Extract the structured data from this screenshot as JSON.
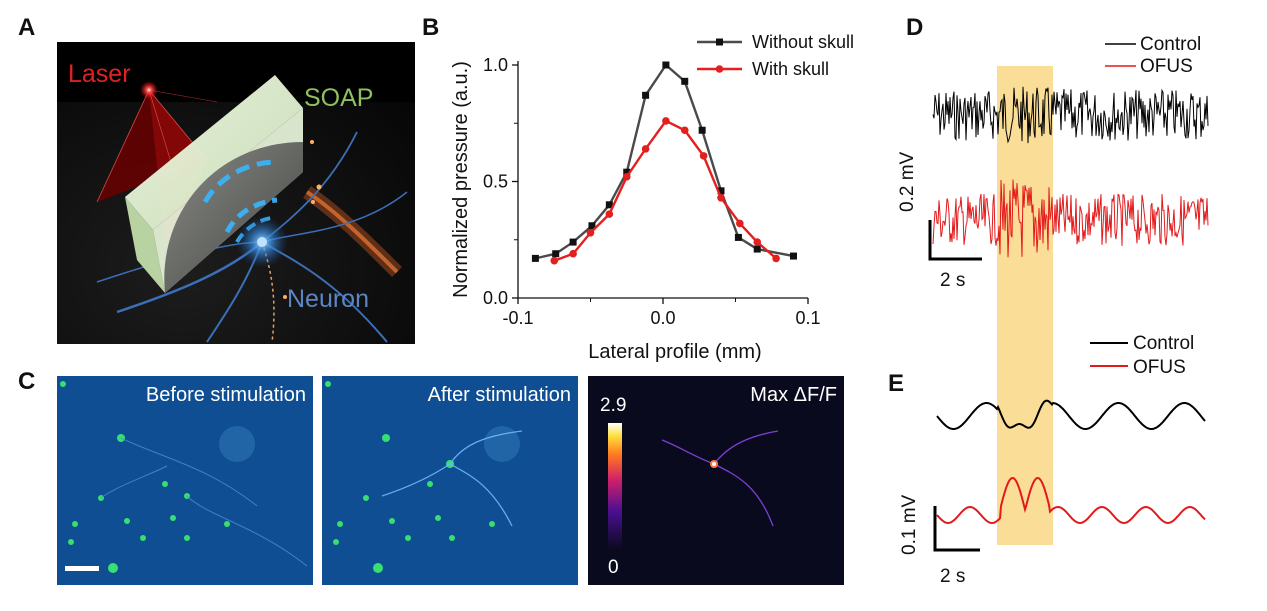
{
  "panels": {
    "a": {
      "letter": "A",
      "labels": {
        "laser": "Laser",
        "soap": "SOAP",
        "neuron": "Neuron"
      }
    },
    "b": {
      "letter": "B",
      "chart_data": {
        "type": "line",
        "xlabel": "Lateral profile (mm)",
        "ylabel": "Normalized pressure (a.u.)",
        "xlim": [
          -0.1,
          0.1
        ],
        "ylim": [
          0.0,
          1.0
        ],
        "xticks": [
          "-0.1",
          "0.0",
          "0.1"
        ],
        "yticks": [
          "0.0",
          "0.5",
          "1.0"
        ],
        "legend_position": "top-right",
        "series": [
          {
            "name": "Without skull",
            "color": "#4a4a4a",
            "marker": "square",
            "x": [
              -0.088,
              -0.074,
              -0.062,
              -0.049,
              -0.037,
              -0.025,
              -0.012,
              0.002,
              0.015,
              0.027,
              0.04,
              0.052,
              0.065,
              0.09
            ],
            "y": [
              0.17,
              0.19,
              0.24,
              0.31,
              0.4,
              0.54,
              0.87,
              1.0,
              0.93,
              0.72,
              0.46,
              0.26,
              0.21,
              0.18
            ]
          },
          {
            "name": "With skull",
            "color": "#e32020",
            "marker": "circle",
            "x": [
              -0.075,
              -0.062,
              -0.05,
              -0.037,
              -0.025,
              -0.012,
              0.002,
              0.015,
              0.028,
              0.04,
              0.053,
              0.065,
              0.078
            ],
            "y": [
              0.16,
              0.19,
              0.28,
              0.36,
              0.52,
              0.64,
              0.76,
              0.72,
              0.61,
              0.43,
              0.32,
              0.24,
              0.17
            ]
          }
        ]
      }
    },
    "c": {
      "letter": "C",
      "before_title": "Before stimulation",
      "after_title": "After stimulation",
      "max_title": "Max ΔF/F",
      "colorbar_max": "2.9",
      "colorbar_min": "0"
    },
    "d": {
      "letter": "D",
      "legend": {
        "control": "Control",
        "ofus": "OFUS"
      },
      "scale_v": "0.2 mV",
      "scale_t": "2 s",
      "colors": {
        "control": "#000000",
        "ofus": "#e31a1c",
        "highlight": "#f6c343"
      }
    },
    "e": {
      "letter": "E",
      "legend": {
        "control": "Control",
        "ofus": "OFUS"
      },
      "scale_v": "0.1 mV",
      "scale_t": "2 s"
    }
  }
}
